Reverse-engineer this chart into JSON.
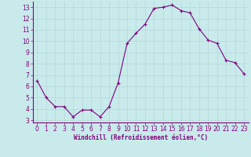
{
  "x": [
    0,
    1,
    2,
    3,
    4,
    5,
    6,
    7,
    8,
    9,
    10,
    11,
    12,
    13,
    14,
    15,
    16,
    17,
    18,
    19,
    20,
    21,
    22,
    23
  ],
  "y": [
    6.5,
    5.0,
    4.2,
    4.2,
    3.3,
    3.9,
    3.9,
    3.3,
    4.2,
    6.3,
    9.8,
    10.7,
    11.5,
    12.9,
    13.0,
    13.2,
    12.7,
    12.5,
    11.1,
    10.1,
    9.8,
    8.3,
    8.1,
    7.1
  ],
  "line_color": "#800080",
  "marker": "+",
  "bg_color": "#c8eaea",
  "grid_color": "#b0d8d8",
  "xlabel": "Windchill (Refroidissement éolien,°C)",
  "xlabel_color": "#800080",
  "tick_color": "#800080",
  "spine_color": "#800080",
  "ylim": [
    2.8,
    13.5
  ],
  "xlim": [
    -0.5,
    23.5
  ],
  "yticks": [
    3,
    4,
    5,
    6,
    7,
    8,
    9,
    10,
    11,
    12,
    13
  ],
  "xticks": [
    0,
    1,
    2,
    3,
    4,
    5,
    6,
    7,
    8,
    9,
    10,
    11,
    12,
    13,
    14,
    15,
    16,
    17,
    18,
    19,
    20,
    21,
    22,
    23
  ],
  "tick_fontsize": 5.5,
  "xlabel_fontsize": 5.5,
  "marker_size": 3,
  "linewidth": 0.8
}
